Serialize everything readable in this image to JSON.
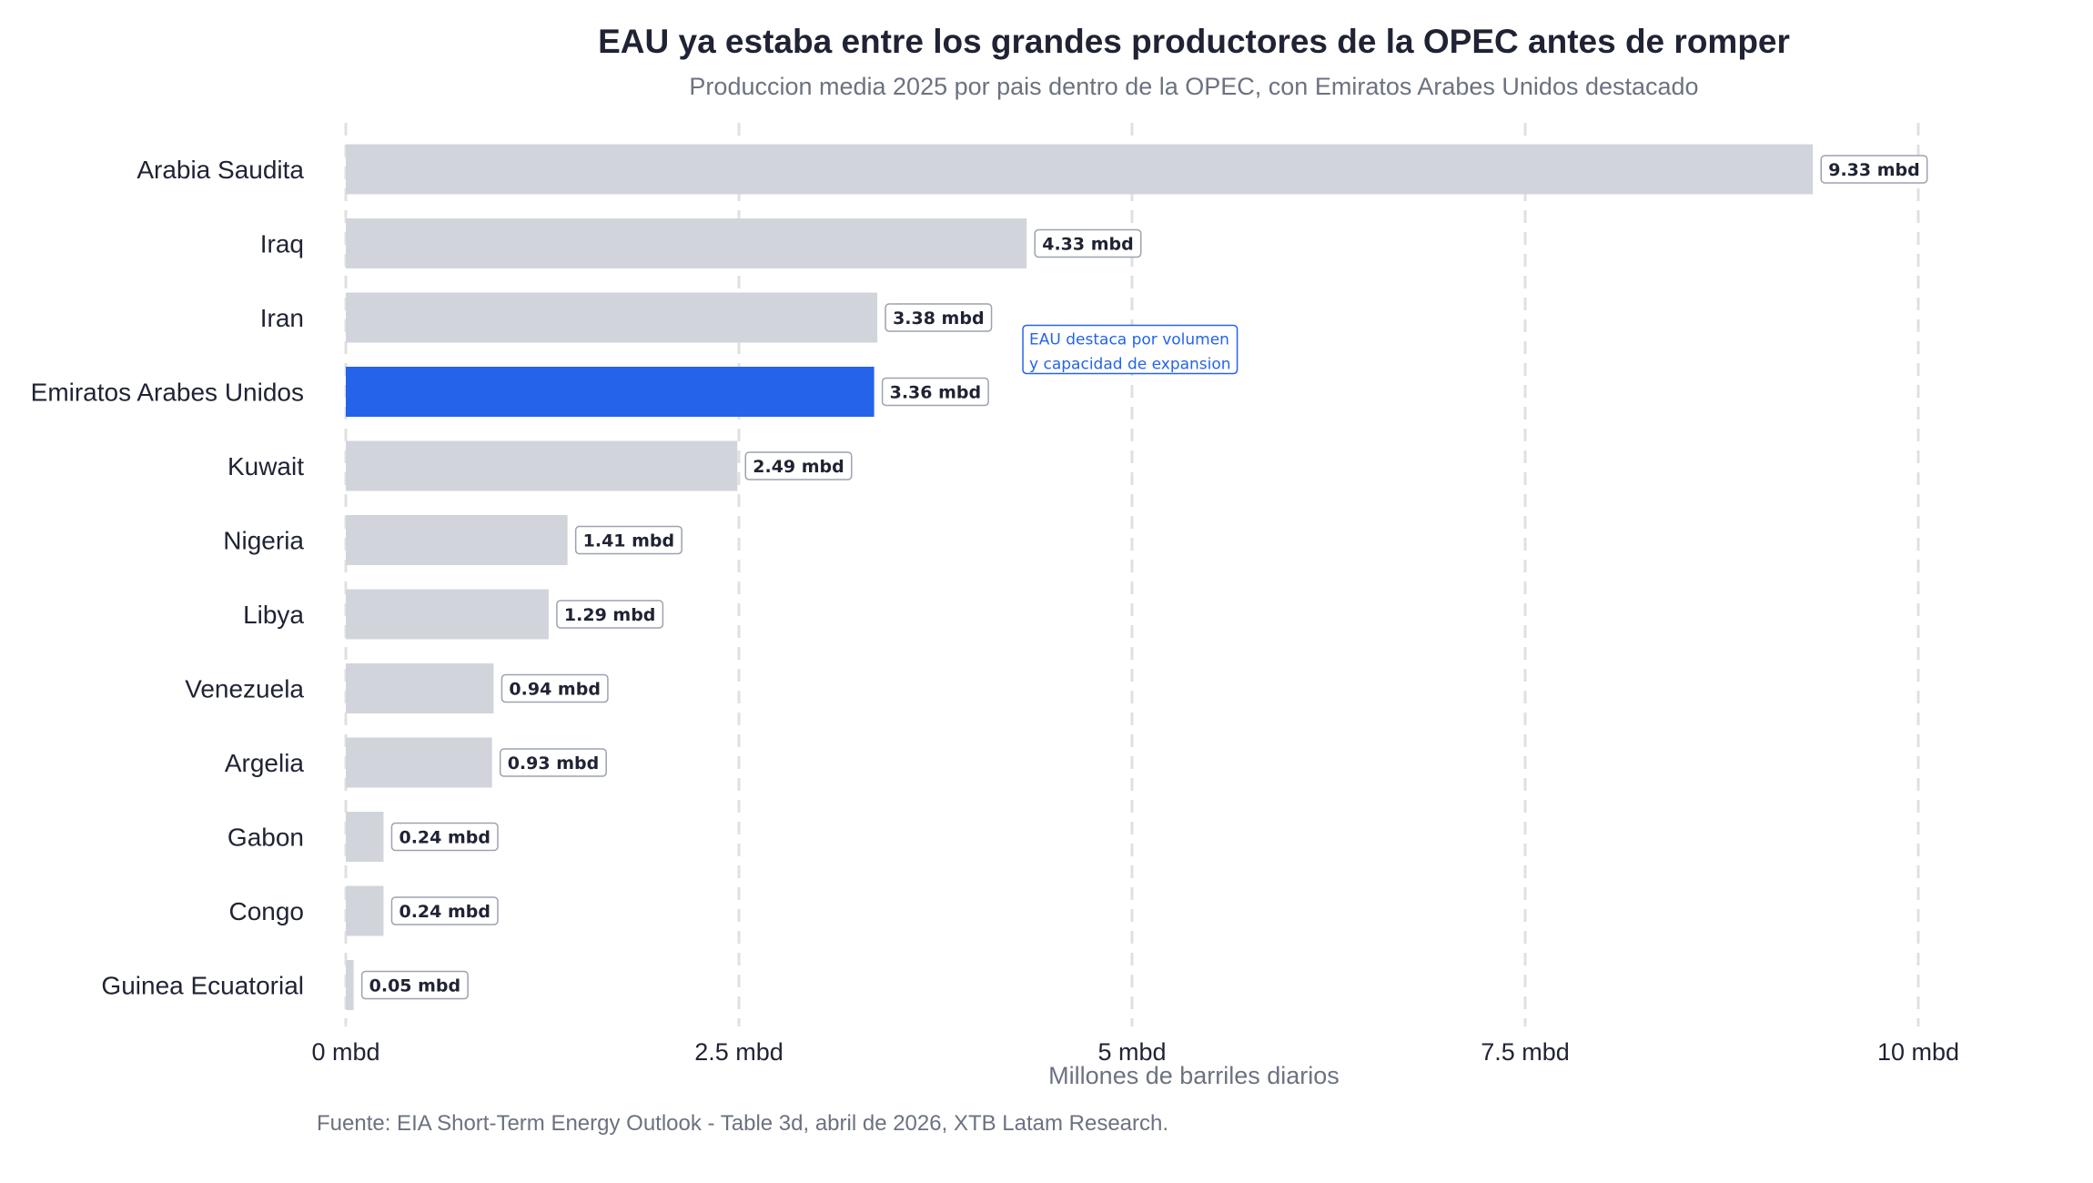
{
  "chart_data": {
    "type": "bar",
    "orientation": "horizontal",
    "title": "EAU ya estaba entre los grandes productores de la OPEC antes de romper",
    "subtitle": "Produccion media 2025 por pais dentro de la OPEC, con Emiratos Arabes Unidos destacado",
    "xlabel": "Millones de barriles diarios",
    "ylabel": "",
    "xlim": [
      0,
      10
    ],
    "xticks": [
      {
        "value": 0,
        "label": "0 mbd"
      },
      {
        "value": 2.5,
        "label": "2.5 mbd"
      },
      {
        "value": 5,
        "label": "5 mbd"
      },
      {
        "value": 7.5,
        "label": "7.5 mbd"
      },
      {
        "value": 10,
        "label": "10 mbd"
      }
    ],
    "grid": "vertical-dashed",
    "categories": [
      "Arabia Saudita",
      "Iraq",
      "Iran",
      "Emiratos Arabes Unidos",
      "Kuwait",
      "Nigeria",
      "Libya",
      "Venezuela",
      "Argelia",
      "Gabon",
      "Congo",
      "Guinea Ecuatorial"
    ],
    "values": [
      9.33,
      4.33,
      3.38,
      3.36,
      2.49,
      1.41,
      1.29,
      0.94,
      0.93,
      0.24,
      0.24,
      0.05
    ],
    "value_labels": [
      "9.33 mbd",
      "4.33 mbd",
      "3.38 mbd",
      "3.36 mbd",
      "2.49 mbd",
      "1.41 mbd",
      "1.29 mbd",
      "0.94 mbd",
      "0.93 mbd",
      "0.24 mbd",
      "0.24 mbd",
      "0.05 mbd"
    ],
    "highlight": "Emiratos Arabes Unidos",
    "colors": {
      "default": "#d1d5db",
      "highlight": "#2563eb",
      "grid": "#e0e0e0",
      "annotation": "#2563eb"
    },
    "annotation": {
      "lines": [
        "EAU destaca por volumen",
        "y capacidad de expansion"
      ],
      "x": 4.3,
      "near_category": "Emiratos Arabes Unidos"
    },
    "source": "Fuente: EIA Short-Term Energy Outlook - Table 3d, abril de 2026, XTB Latam Research."
  }
}
